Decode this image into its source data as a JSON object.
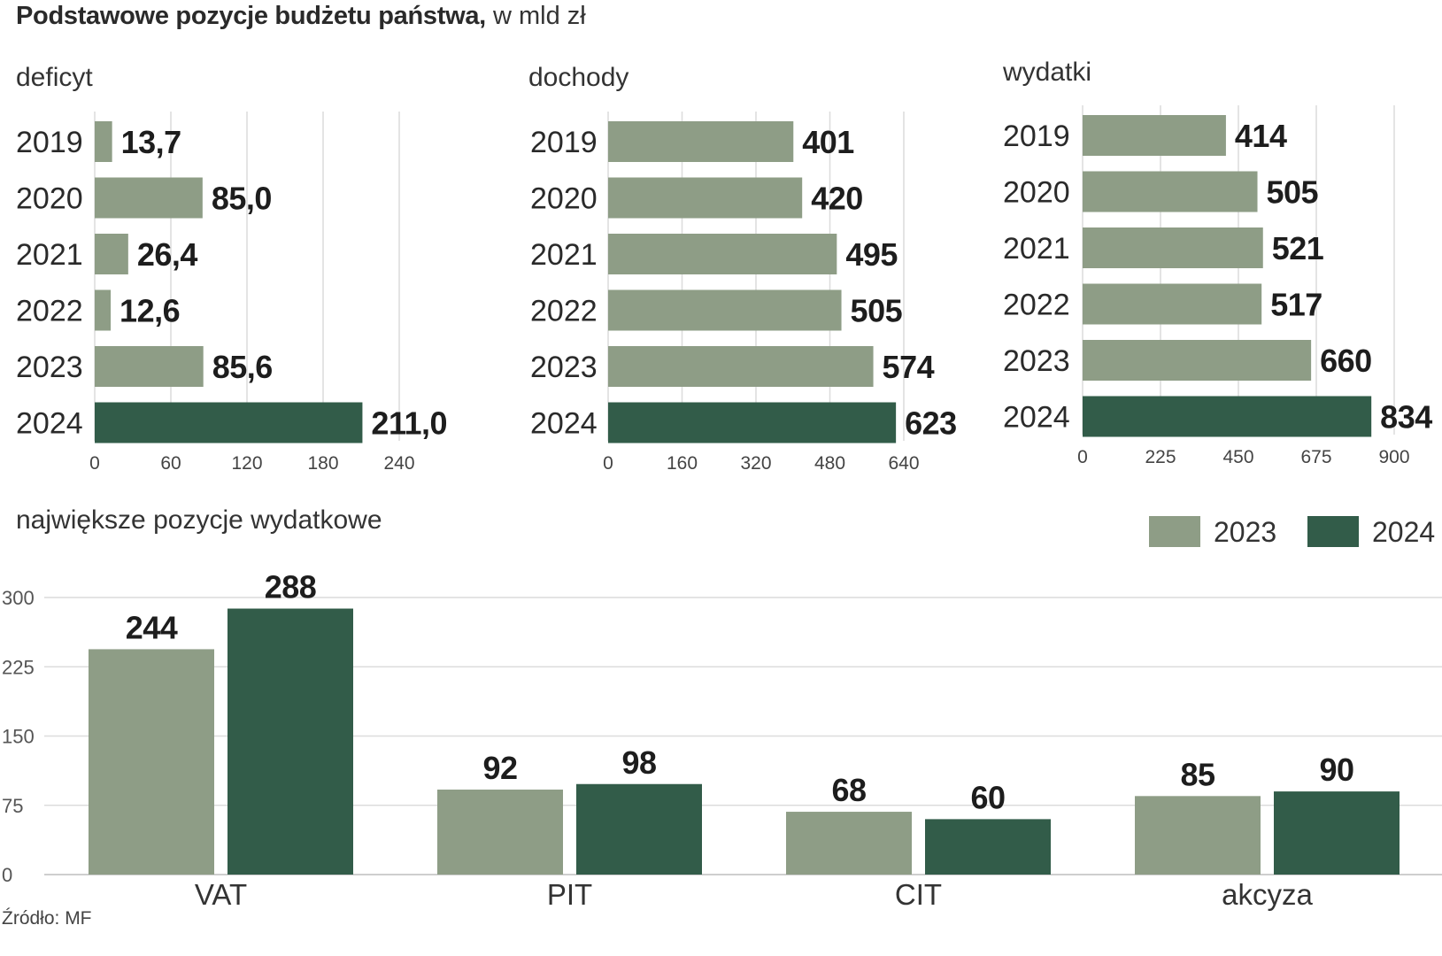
{
  "header": {
    "title_bold": "Podstawowe pozycje budżetu państwa,",
    "title_unit": " w mld zł"
  },
  "colors": {
    "series_2023": "#8e9d86",
    "series_2024": "#325c49"
  },
  "chart_data": [
    {
      "type": "bar",
      "orientation": "horizontal",
      "title": "deficyt",
      "categories": [
        "2019",
        "2020",
        "2021",
        "2022",
        "2023",
        "2024"
      ],
      "values": [
        13.7,
        85.0,
        26.4,
        12.6,
        85.6,
        211.0
      ],
      "value_labels": [
        "13,7",
        "85,0",
        "26,4",
        "12,6",
        "85,6",
        "211,0"
      ],
      "xticks": [
        0,
        60,
        120,
        180,
        240
      ],
      "xlim": [
        0,
        240
      ],
      "grid": true,
      "highlight_category": "2024"
    },
    {
      "type": "bar",
      "orientation": "horizontal",
      "title": "dochody",
      "categories": [
        "2019",
        "2020",
        "2021",
        "2022",
        "2023",
        "2024"
      ],
      "values": [
        401,
        420,
        495,
        505,
        574,
        623
      ],
      "value_labels": [
        "401",
        "420",
        "495",
        "505",
        "574",
        "623"
      ],
      "xticks": [
        0,
        160,
        320,
        480,
        640
      ],
      "xlim": [
        0,
        640
      ],
      "grid": true,
      "highlight_category": "2024"
    },
    {
      "type": "bar",
      "orientation": "horizontal",
      "title": "wydatki",
      "categories": [
        "2019",
        "2020",
        "2021",
        "2022",
        "2023",
        "2024"
      ],
      "values": [
        414,
        505,
        521,
        517,
        660,
        834
      ],
      "value_labels": [
        "414",
        "505",
        "521",
        "517",
        "660",
        "834"
      ],
      "xticks": [
        0,
        225,
        450,
        675,
        900
      ],
      "xlim": [
        0,
        900
      ],
      "grid": true,
      "highlight_category": "2024"
    },
    {
      "type": "bar",
      "orientation": "vertical",
      "title": "największe pozycje wydatkowe",
      "categories": [
        "VAT",
        "PIT",
        "CIT",
        "akcyza"
      ],
      "series": [
        {
          "name": "2023",
          "values": [
            244,
            92,
            68,
            85
          ]
        },
        {
          "name": "2024",
          "values": [
            288,
            98,
            60,
            90
          ]
        }
      ],
      "yticks": [
        0,
        75,
        150,
        225,
        300
      ],
      "ylim": [
        0,
        300
      ],
      "grid": true,
      "legend_position": "top-right"
    }
  ],
  "footer": {
    "source": "Źródło: MF"
  }
}
